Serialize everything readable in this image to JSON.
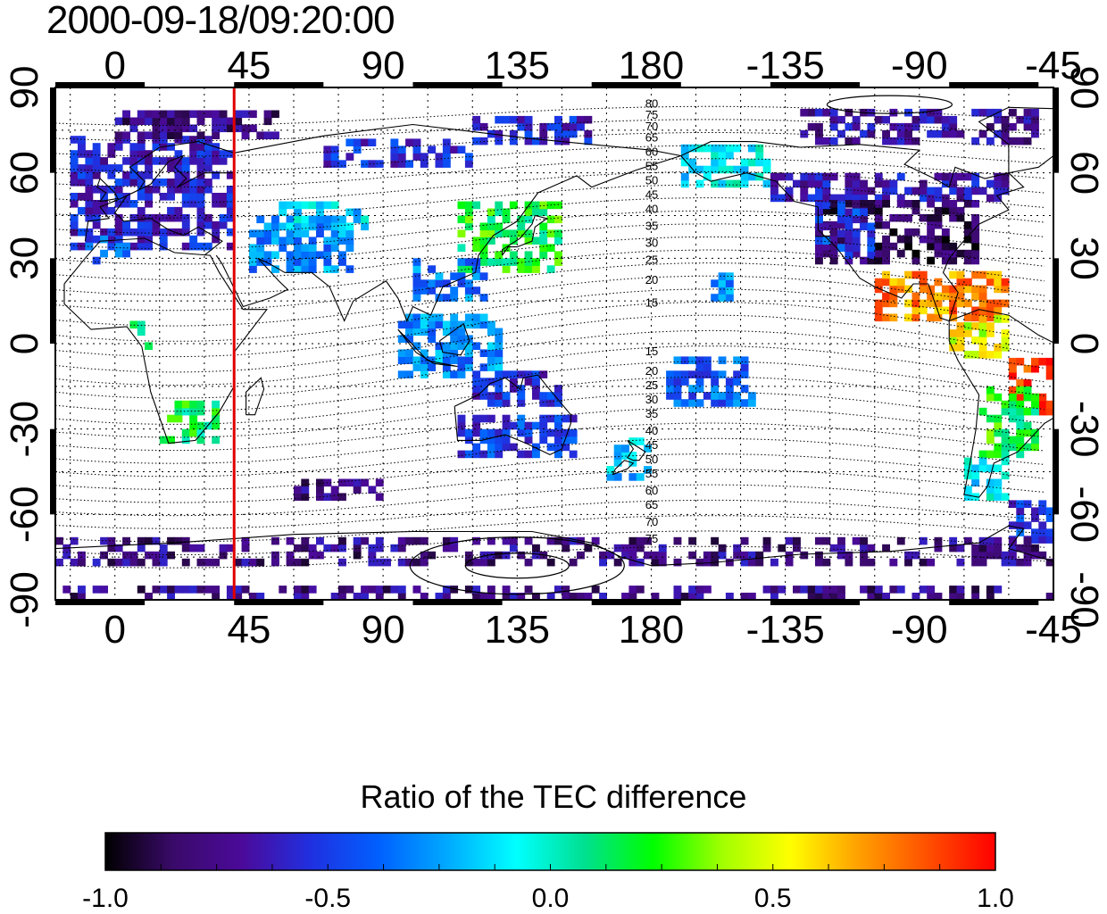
{
  "title": "2000-09-18/09:20:00",
  "x_axis": {
    "lon_range": [
      -20,
      315
    ],
    "tick_labels_top": [
      "0",
      "45",
      "90",
      "135",
      "180",
      "-135",
      "-90",
      "-45"
    ],
    "tick_labels_bottom": [
      "0",
      "45",
      "90",
      "135",
      "180",
      "-135",
      "-90",
      "-45"
    ],
    "tick_positions_lon": [
      0,
      45,
      90,
      135,
      180,
      225,
      270,
      315
    ]
  },
  "y_axis": {
    "lat_range": [
      -90,
      90
    ],
    "tick_labels_left": [
      "90",
      "60",
      "30",
      "0",
      "-30",
      "-60",
      "-90"
    ],
    "tick_labels_right": [
      "90",
      "60",
      "30",
      "0",
      "-30",
      "-60",
      "-90"
    ],
    "tick_positions_lat": [
      90,
      60,
      30,
      0,
      -30,
      -60,
      -90
    ]
  },
  "marker_line": {
    "lon": 40,
    "color": "#e00000"
  },
  "contour_labels": [
    {
      "text": "80",
      "lon": 178,
      "lat": 83
    },
    {
      "text": "75",
      "lon": 178,
      "lat": 79
    },
    {
      "text": "70",
      "lon": 178,
      "lat": 75
    },
    {
      "text": "65",
      "lon": 178,
      "lat": 71
    },
    {
      "text": "60",
      "lon": 178,
      "lat": 66
    },
    {
      "text": "55",
      "lon": 178,
      "lat": 61
    },
    {
      "text": "50",
      "lon": 178,
      "lat": 56
    },
    {
      "text": "45",
      "lon": 178,
      "lat": 51
    },
    {
      "text": "40",
      "lon": 178,
      "lat": 46
    },
    {
      "text": "35",
      "lon": 178,
      "lat": 40
    },
    {
      "text": "30",
      "lon": 178,
      "lat": 34
    },
    {
      "text": "25",
      "lon": 178,
      "lat": 28
    },
    {
      "text": "20",
      "lon": 178,
      "lat": 21
    },
    {
      "text": "15",
      "lon": 178,
      "lat": 13
    },
    {
      "text": "15",
      "lon": 178,
      "lat": -4
    },
    {
      "text": "20",
      "lon": 178,
      "lat": -11
    },
    {
      "text": "25",
      "lon": 178,
      "lat": -16
    },
    {
      "text": "30",
      "lon": 178,
      "lat": -21
    },
    {
      "text": "35",
      "lon": 178,
      "lat": -26
    },
    {
      "text": "40",
      "lon": 178,
      "lat": -32
    },
    {
      "text": "45",
      "lon": 178,
      "lat": -37
    },
    {
      "text": "50",
      "lon": 178,
      "lat": -42
    },
    {
      "text": "55",
      "lon": 178,
      "lat": -47
    },
    {
      "text": "60",
      "lon": 178,
      "lat": -53
    },
    {
      "text": "65",
      "lon": 178,
      "lat": -58
    },
    {
      "text": "70",
      "lon": 178,
      "lat": -64
    },
    {
      "text": "75",
      "lon": 178,
      "lat": -70
    }
  ],
  "colorbar": {
    "title": "Ratio of the TEC difference",
    "range": [
      -1.0,
      1.0
    ],
    "tick_labels": [
      "-1.0",
      "-0.5",
      "0.0",
      "0.5",
      "1.0"
    ],
    "tick_values": [
      -1.0,
      -0.5,
      0.0,
      0.5,
      1.0
    ],
    "colormap": [
      "#000000",
      "#3a0a6a",
      "#4b0a9a",
      "#2030e0",
      "#0060ff",
      "#00aaff",
      "#00ffff",
      "#00e090",
      "#00ff00",
      "#a0ff00",
      "#ffff00",
      "#ffa000",
      "#ff5000",
      "#ff0000"
    ]
  },
  "data_regions": [
    {
      "name": "europe",
      "lon": [
        -15,
        40
      ],
      "lat": [
        33,
        72
      ],
      "value": -0.6
    },
    {
      "name": "north-africa-west",
      "lon": [
        -10,
        5
      ],
      "lat": [
        28,
        36
      ],
      "value": -0.35
    },
    {
      "name": "north-russia",
      "lon": [
        0,
        55
      ],
      "lat": [
        72,
        82
      ],
      "value": -0.75
    },
    {
      "name": "middle-east",
      "lon": [
        45,
        80
      ],
      "lat": [
        25,
        45
      ],
      "value": -0.3
    },
    {
      "name": "central-asia",
      "lon": [
        55,
        85
      ],
      "lat": [
        40,
        50
      ],
      "value": -0.15
    },
    {
      "name": "siberia",
      "lon": [
        70,
        120
      ],
      "lat": [
        62,
        72
      ],
      "value": -0.55
    },
    {
      "name": "north-siberia",
      "lon": [
        120,
        160
      ],
      "lat": [
        70,
        78
      ],
      "value": -0.6
    },
    {
      "name": "japan-china",
      "lon": [
        115,
        150
      ],
      "lat": [
        25,
        48
      ],
      "value": 0.2
    },
    {
      "name": "china-south",
      "lon": [
        100,
        125
      ],
      "lat": [
        15,
        30
      ],
      "value": -0.35
    },
    {
      "name": "southeast-asia",
      "lon": [
        95,
        130
      ],
      "lat": [
        -12,
        10
      ],
      "value": -0.3
    },
    {
      "name": "africa-west",
      "lon": [
        5,
        12
      ],
      "lat": [
        -2,
        6
      ],
      "value": 0.15
    },
    {
      "name": "south-africa",
      "lon": [
        15,
        35
      ],
      "lat": [
        -35,
        -22
      ],
      "value": 0.15
    },
    {
      "name": "australia-north",
      "lon": [
        120,
        150
      ],
      "lat": [
        -22,
        -10
      ],
      "value": -0.55
    },
    {
      "name": "australia-south",
      "lon": [
        115,
        155
      ],
      "lat": [
        -40,
        -25
      ],
      "value": -0.5
    },
    {
      "name": "new-zealand",
      "lon": [
        165,
        180
      ],
      "lat": [
        -48,
        -35
      ],
      "value": -0.2
    },
    {
      "name": "pacific-islands",
      "lon": [
        185,
        215
      ],
      "lat": [
        -22,
        -5
      ],
      "value": -0.4
    },
    {
      "name": "hawaii",
      "lon": [
        200,
        210
      ],
      "lat": [
        15,
        25
      ],
      "value": -0.3
    },
    {
      "name": "alaska",
      "lon": [
        190,
        220
      ],
      "lat": [
        55,
        70
      ],
      "value": -0.1
    },
    {
      "name": "canada",
      "lon": [
        220,
        300
      ],
      "lat": [
        50,
        60
      ],
      "value": -0.65
    },
    {
      "name": "arctic-canada",
      "lon": [
        230,
        310
      ],
      "lat": [
        70,
        82
      ],
      "value": -0.7
    },
    {
      "name": "usa",
      "lon": [
        235,
        290
      ],
      "lat": [
        28,
        50
      ],
      "value": -0.85
    },
    {
      "name": "usa-west",
      "lon": [
        235,
        255
      ],
      "lat": [
        30,
        48
      ],
      "value": -0.5
    },
    {
      "name": "mexico-caribbean",
      "lon": [
        255,
        300
      ],
      "lat": [
        8,
        25
      ],
      "value": 0.75
    },
    {
      "name": "south-america-north",
      "lon": [
        280,
        300
      ],
      "lat": [
        -5,
        10
      ],
      "value": 0.5
    },
    {
      "name": "brazil",
      "lon": [
        300,
        325
      ],
      "lat": [
        -25,
        -5
      ],
      "value": 0.9
    },
    {
      "name": "south-america-central",
      "lon": [
        290,
        310
      ],
      "lat": [
        -40,
        -15
      ],
      "value": 0.2
    },
    {
      "name": "patagonia",
      "lon": [
        285,
        300
      ],
      "lat": [
        -55,
        -40
      ],
      "value": -0.1
    },
    {
      "name": "south-atlantic",
      "lon": [
        300,
        320
      ],
      "lat": [
        -70,
        -55
      ],
      "value": -0.5
    },
    {
      "name": "antarctic-ring",
      "lon": [
        -20,
        320
      ],
      "lat": [
        -78,
        -70
      ],
      "value": -0.75
    },
    {
      "name": "antarctic-bottom",
      "lon": [
        -20,
        320
      ],
      "lat": [
        -90,
        -85
      ],
      "value": -0.75
    },
    {
      "name": "south-indian",
      "lon": [
        60,
        90
      ],
      "lat": [
        -55,
        -48
      ],
      "value": -0.75
    }
  ]
}
